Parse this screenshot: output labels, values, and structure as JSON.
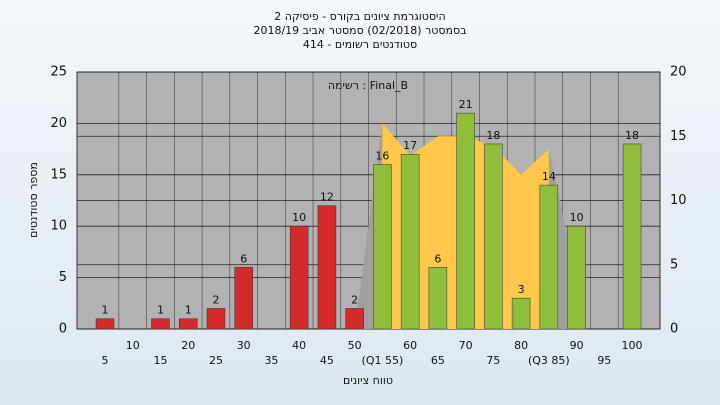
{
  "chart_data": {
    "type": "bar",
    "title": "היסטוגרמת ציונים בקורס - פיסיקה 2",
    "subtitle": "בסמסטר (02/2018) סמסטר אביב 2018/19",
    "subtitle2": "סטודנטים רשומים - 414",
    "annotation": "Final_B : רשימה",
    "x_label": "טווח ציונים",
    "y_label": "מספר סטודנטים",
    "categories": [
      "5",
      "10",
      "15",
      "20",
      "25",
      "30",
      "35",
      "40",
      "45",
      "50",
      "(Q1 55)",
      "60",
      "65",
      "70",
      "75",
      "80",
      "(Q3 85)",
      "90",
      "95",
      "100"
    ],
    "series": [
      {
        "color": "#d42a2a",
        "values": [
          1,
          null,
          1,
          1,
          2,
          6,
          null,
          10,
          12,
          2,
          null,
          null,
          null,
          null,
          null,
          null,
          null,
          null,
          null,
          null
        ]
      },
      {
        "color": "#8fbf3a",
        "values": [
          null,
          null,
          null,
          null,
          null,
          null,
          null,
          null,
          null,
          null,
          16,
          17,
          6,
          21,
          18,
          3,
          14,
          10,
          null,
          18
        ]
      }
    ],
    "areas": [
      {
        "color": "#a0a0a0",
        "axis": "y2",
        "values": [
          null,
          null,
          null,
          null,
          null,
          null,
          null,
          null,
          null,
          0,
          16,
          13.5,
          15,
          15,
          14.2,
          12,
          14,
          4,
          null,
          null
        ]
      },
      {
        "color": "#ffc84a",
        "axis": "y2",
        "values": [
          null,
          null,
          null,
          null,
          null,
          null,
          null,
          null,
          null,
          null,
          16,
          13.5,
          15,
          15,
          14.2,
          12,
          14,
          null,
          null,
          null
        ]
      }
    ],
    "ylim": [
      0,
      25
    ],
    "yticks": [
      0,
      5,
      10,
      15,
      20,
      25
    ],
    "y2lim": [
      0,
      20
    ],
    "y2ticks": [
      0,
      5,
      10,
      15,
      20
    ],
    "grid": true
  }
}
